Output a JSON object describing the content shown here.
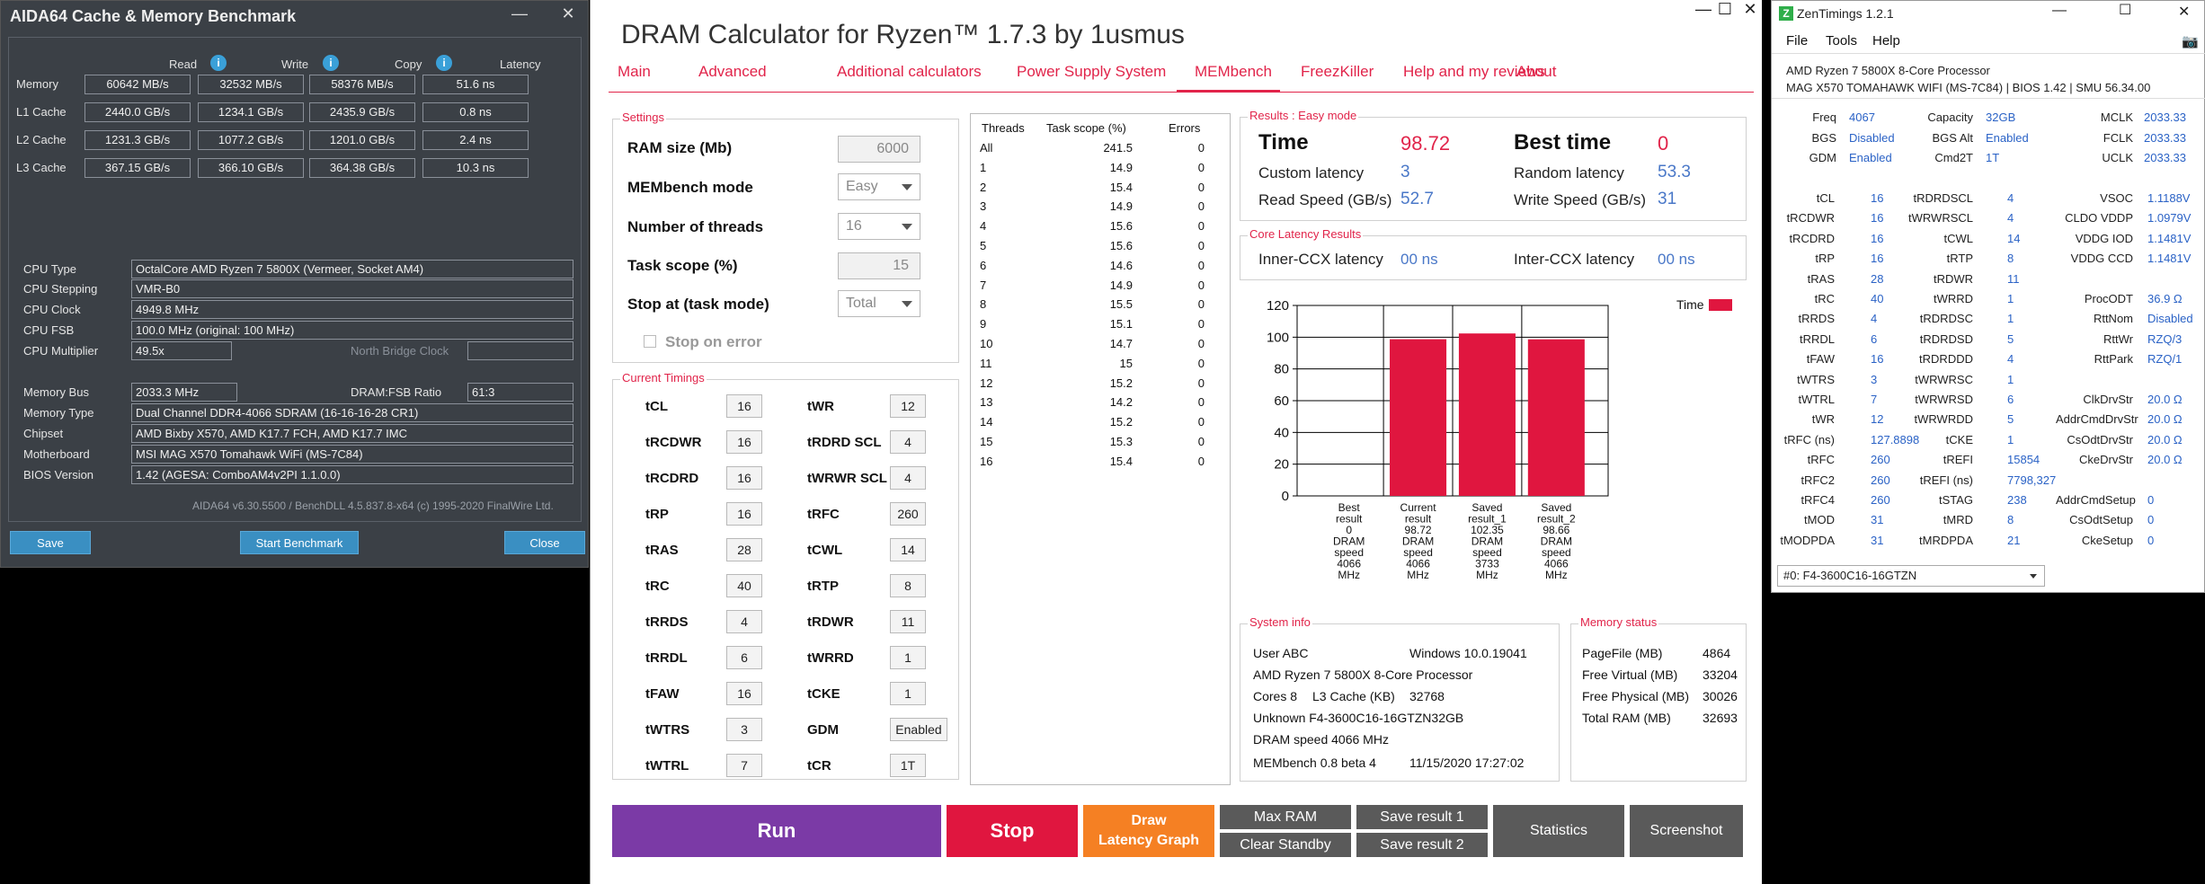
{
  "aida": {
    "title": "AIDA64 Cache & Memory Benchmark",
    "win_min": "—",
    "win_close": "✕",
    "col_read": "Read",
    "col_write": "Write",
    "col_copy": "Copy",
    "col_latency": "Latency",
    "rows": [
      {
        "label": "Memory",
        "read": "60642 MB/s",
        "write": "32532 MB/s",
        "copy": "58376 MB/s",
        "latency": "51.6 ns"
      },
      {
        "label": "L1 Cache",
        "read": "2440.0 GB/s",
        "write": "1234.1 GB/s",
        "copy": "2435.9 GB/s",
        "latency": "0.8 ns"
      },
      {
        "label": "L2 Cache",
        "read": "1231.3 GB/s",
        "write": "1077.2 GB/s",
        "copy": "1201.0 GB/s",
        "latency": "2.4 ns"
      },
      {
        "label": "L3 Cache",
        "read": "367.15 GB/s",
        "write": "366.10 GB/s",
        "copy": "364.38 GB/s",
        "latency": "10.3 ns"
      }
    ],
    "cpu_type_label": "CPU Type",
    "cpu_type": "OctalCore AMD Ryzen 7 5800X  (Vermeer, Socket AM4)",
    "cpu_stepping_label": "CPU Stepping",
    "cpu_stepping": "VMR-B0",
    "cpu_clock_label": "CPU Clock",
    "cpu_clock": "4949.8 MHz",
    "cpu_fsb_label": "CPU FSB",
    "cpu_fsb": "100.0 MHz  (original: 100 MHz)",
    "cpu_mult_label": "CPU Multiplier",
    "cpu_mult": "49.5x",
    "nb_clock_label": "North Bridge Clock",
    "mem_bus_label": "Memory Bus",
    "mem_bus": "2033.3 MHz",
    "dram_fsb_label": "DRAM:FSB Ratio",
    "dram_fsb": "61:3",
    "mem_type_label": "Memory Type",
    "mem_type": "Dual Channel DDR4-4066 SDRAM  (16-16-16-28 CR1)",
    "chipset_label": "Chipset",
    "chipset": "AMD Bixby X570, AMD K17.7 FCH, AMD K17.7 IMC",
    "mobo_label": "Motherboard",
    "mobo": "MSI MAG X570 Tomahawk WiFi (MS-7C84)",
    "bios_label": "BIOS Version",
    "bios": "1.42  (AGESA: ComboAM4v2PI 1.1.0.0)",
    "footer": "AIDA64 v6.30.5500 / BenchDLL 4.5.837.8-x64  (c) 1995-2020 FinalWire Ltd.",
    "save": "Save",
    "start": "Start Benchmark",
    "close": "Close"
  },
  "dram": {
    "title": "DRAM Calculator for Ryzen™ 1.7.3 by 1usmus",
    "win_min": "—",
    "win_max": "☐",
    "win_close": "✕",
    "menu": [
      "Main",
      "Advanced",
      "Additional calculators",
      "Power Supply System",
      "MEMbench",
      "FreezKiller",
      "Help and my reviews",
      "About"
    ],
    "settings_title": "Settings",
    "ram_size_label": "RAM size (Mb)",
    "ram_size": "6000",
    "mode_label": "MEMbench mode",
    "mode": "Easy",
    "threads_label": "Number of threads",
    "threads": "16",
    "scope_label": "Task scope (%)",
    "scope": "15",
    "stop_at_label": "Stop at (task mode)",
    "stop_at": "Total",
    "stop_on_error": "Stop on error",
    "timings_title": "Current Timings",
    "timings_left": [
      {
        "l": "tCL",
        "v": "16"
      },
      {
        "l": "tRCDWR",
        "v": "16"
      },
      {
        "l": "tRCDRD",
        "v": "16"
      },
      {
        "l": "tRP",
        "v": "16"
      },
      {
        "l": "tRAS",
        "v": "28"
      },
      {
        "l": "tRC",
        "v": "40"
      },
      {
        "l": "tRRDS",
        "v": "4"
      },
      {
        "l": "tRRDL",
        "v": "6"
      },
      {
        "l": "tFAW",
        "v": "16"
      },
      {
        "l": "tWTRS",
        "v": "3"
      },
      {
        "l": "tWTRL",
        "v": "7"
      }
    ],
    "timings_right": [
      {
        "l": "tWR",
        "v": "12"
      },
      {
        "l": "tRDRD SCL",
        "v": "4"
      },
      {
        "l": "tWRWR SCL",
        "v": "4"
      },
      {
        "l": "tRFC",
        "v": "260"
      },
      {
        "l": "tCWL",
        "v": "14"
      },
      {
        "l": "tRTP",
        "v": "8"
      },
      {
        "l": "tRDWR",
        "v": "11"
      },
      {
        "l": "tWRRD",
        "v": "1"
      },
      {
        "l": "tCKE",
        "v": "1"
      },
      {
        "l": "GDM",
        "v": "Enabled"
      },
      {
        "l": "tCR",
        "v": "1T"
      }
    ],
    "threads_table": {
      "headers": [
        "Threads",
        "Task scope (%)",
        "Errors"
      ],
      "rows": [
        [
          "All",
          "241.5",
          "0"
        ],
        [
          "1",
          "14.9",
          "0"
        ],
        [
          "2",
          "15.4",
          "0"
        ],
        [
          "3",
          "14.9",
          "0"
        ],
        [
          "4",
          "15.6",
          "0"
        ],
        [
          "5",
          "15.6",
          "0"
        ],
        [
          "6",
          "14.6",
          "0"
        ],
        [
          "7",
          "14.9",
          "0"
        ],
        [
          "8",
          "15.5",
          "0"
        ],
        [
          "9",
          "15.1",
          "0"
        ],
        [
          "10",
          "14.7",
          "0"
        ],
        [
          "11",
          "15",
          "0"
        ],
        [
          "12",
          "15.2",
          "0"
        ],
        [
          "13",
          "14.2",
          "0"
        ],
        [
          "14",
          "15.2",
          "0"
        ],
        [
          "15",
          "15.3",
          "0"
        ],
        [
          "16",
          "15.4",
          "0"
        ]
      ]
    },
    "results_title": "Results : Easy mode",
    "time_label": "Time",
    "time": "98.72",
    "best_time_label": "Best time",
    "best_time": "0",
    "custom_latency_label": "Custom latency",
    "custom_latency": "3",
    "random_latency_label": "Random latency",
    "random_latency": "53.3",
    "read_speed_label": "Read Speed (GB/s)",
    "read_speed": "52.7",
    "write_speed_label": "Write Speed (GB/s)",
    "write_speed": "31",
    "core_latency_title": "Core Latency Results",
    "inter_ccx_label": "Inner-CCX latency",
    "inter_ccx": "00 ns",
    "inter_ccx2_label": "Inter-CCX latency",
    "inter_ccx2": "00 ns",
    "sysinfo_title": "System info",
    "sys_user": "User ABC",
    "sys_os": "Windows 10.0.19041",
    "sys_cpu": "AMD Ryzen 7 5800X 8-Core Processor",
    "sys_cores": "Cores 8",
    "sys_l3_label": "L3 Cache (KB)",
    "sys_l3": "32768",
    "sys_mem": "Unknown F4-3600C16-16GTZN32GB",
    "sys_dram": "DRAM speed 4066 MHz",
    "sys_bench": "MEMbench 0.8 beta 4",
    "sys_date": "11/15/2020 17:27:02",
    "memstatus_title": "Memory status",
    "mem_rows": [
      [
        "PageFile (MB)",
        "4864"
      ],
      [
        "Free Virtual (MB)",
        "33204"
      ],
      [
        "Free Physical (MB)",
        "30026"
      ],
      [
        "Total RAM (MB)",
        "32693"
      ]
    ],
    "btn_run": "Run",
    "btn_stop": "Stop",
    "btn_draw1": "Draw",
    "btn_draw2": "Latency Graph",
    "btn_maxram": "Max RAM",
    "btn_clear": "Clear Standby",
    "btn_save1": "Save result 1",
    "btn_save2": "Save result 2",
    "btn_stats": "Statistics",
    "btn_shot": "Screenshot"
  },
  "chart_data": {
    "type": "bar",
    "legend": "Time",
    "legend_position": "top-right",
    "color": "#e0163f",
    "ylim": [
      0,
      120
    ],
    "yticks": [
      0,
      20,
      40,
      60,
      80,
      100,
      120
    ],
    "grid": true,
    "categories": [
      [
        "Best",
        "result",
        "0",
        "DRAM",
        "speed",
        "4066",
        "MHz"
      ],
      [
        "Current",
        "result",
        "98.72",
        "DRAM",
        "speed",
        "4066",
        "MHz"
      ],
      [
        "Saved",
        "result_1",
        "102.35",
        "DRAM",
        "speed",
        "3733",
        "MHz"
      ],
      [
        "Saved",
        "result_2",
        "98.66",
        "DRAM",
        "speed",
        "4066",
        "MHz"
      ]
    ],
    "values": [
      0,
      98.72,
      102.35,
      98.66
    ]
  },
  "zen": {
    "title": "ZenTimings 1.2.1",
    "menu": [
      "File",
      "Tools",
      "Help"
    ],
    "cpu": "AMD Ryzen 7 5800X 8-Core Processor",
    "board": "MAG X570 TOMAHAWK WIFI (MS-7C84) | BIOS 1.42 | SMU 56.34.00",
    "top": [
      [
        [
          "Freq",
          "4067"
        ],
        [
          "Capacity",
          "32GB"
        ],
        [
          "MCLK",
          "2033.33"
        ]
      ],
      [
        [
          "BGS",
          "Disabled"
        ],
        [
          "BGS Alt",
          "Enabled"
        ],
        [
          "FCLK",
          "2033.33"
        ]
      ],
      [
        [
          "GDM",
          "Enabled"
        ],
        [
          "Cmd2T",
          "1T"
        ],
        [
          "UCLK",
          "2033.33"
        ]
      ]
    ],
    "rows": [
      [
        [
          "tCL",
          "16"
        ],
        [
          "tRDRDSCL",
          "4"
        ],
        [
          "VSOC",
          "1.1188V"
        ]
      ],
      [
        [
          "tRCDWR",
          "16"
        ],
        [
          "tWRWRSCL",
          "4"
        ],
        [
          "CLDO VDDP",
          "1.0979V"
        ]
      ],
      [
        [
          "tRCDRD",
          "16"
        ],
        [
          "tCWL",
          "14"
        ],
        [
          "VDDG IOD",
          "1.1481V"
        ]
      ],
      [
        [
          "tRP",
          "16"
        ],
        [
          "tRTP",
          "8"
        ],
        [
          "VDDG CCD",
          "1.1481V"
        ]
      ],
      [
        [
          "tRAS",
          "28"
        ],
        [
          "tRDWR",
          "11"
        ],
        [
          "",
          ""
        ]
      ],
      [
        [
          "tRC",
          "40"
        ],
        [
          "tWRRD",
          "1"
        ],
        [
          "ProcODT",
          "36.9 Ω"
        ]
      ],
      [
        [
          "tRRDS",
          "4"
        ],
        [
          "tRDRDSC",
          "1"
        ],
        [
          "RttNom",
          "Disabled"
        ]
      ],
      [
        [
          "tRRDL",
          "6"
        ],
        [
          "tRDRDSD",
          "5"
        ],
        [
          "RttWr",
          "RZQ/3"
        ]
      ],
      [
        [
          "tFAW",
          "16"
        ],
        [
          "tRDRDDD",
          "4"
        ],
        [
          "RttPark",
          "RZQ/1"
        ]
      ],
      [
        [
          "tWTRS",
          "3"
        ],
        [
          "tWRWRSC",
          "1"
        ],
        [
          "",
          ""
        ]
      ],
      [
        [
          "tWTRL",
          "7"
        ],
        [
          "tWRWRSD",
          "6"
        ],
        [
          "ClkDrvStr",
          "20.0 Ω"
        ]
      ],
      [
        [
          "tWR",
          "12"
        ],
        [
          "tWRWRDD",
          "5"
        ],
        [
          "AddrCmdDrvStr",
          "20.0 Ω"
        ]
      ],
      [
        [
          "tRFC (ns)",
          "127.8898"
        ],
        [
          "tCKE",
          "1"
        ],
        [
          "CsOdtDrvStr",
          "20.0 Ω"
        ]
      ],
      [
        [
          "tRFC",
          "260"
        ],
        [
          "tREFI",
          "15854"
        ],
        [
          "CkeDrvStr",
          "20.0 Ω"
        ]
      ],
      [
        [
          "tRFC2",
          "260"
        ],
        [
          "tREFI (ns)",
          "7798,327"
        ],
        [
          "",
          ""
        ]
      ],
      [
        [
          "tRFC4",
          "260"
        ],
        [
          "tSTAG",
          "238"
        ],
        [
          "AddrCmdSetup",
          "0"
        ]
      ],
      [
        [
          "tMOD",
          "31"
        ],
        [
          "tMRD",
          "8"
        ],
        [
          "CsOdtSetup",
          "0"
        ]
      ],
      [
        [
          "tMODPDA",
          "31"
        ],
        [
          "tMRDPDA",
          "21"
        ],
        [
          "CkeSetup",
          "0"
        ]
      ]
    ],
    "module": "#0: F4-3600C16-16GTZN"
  }
}
